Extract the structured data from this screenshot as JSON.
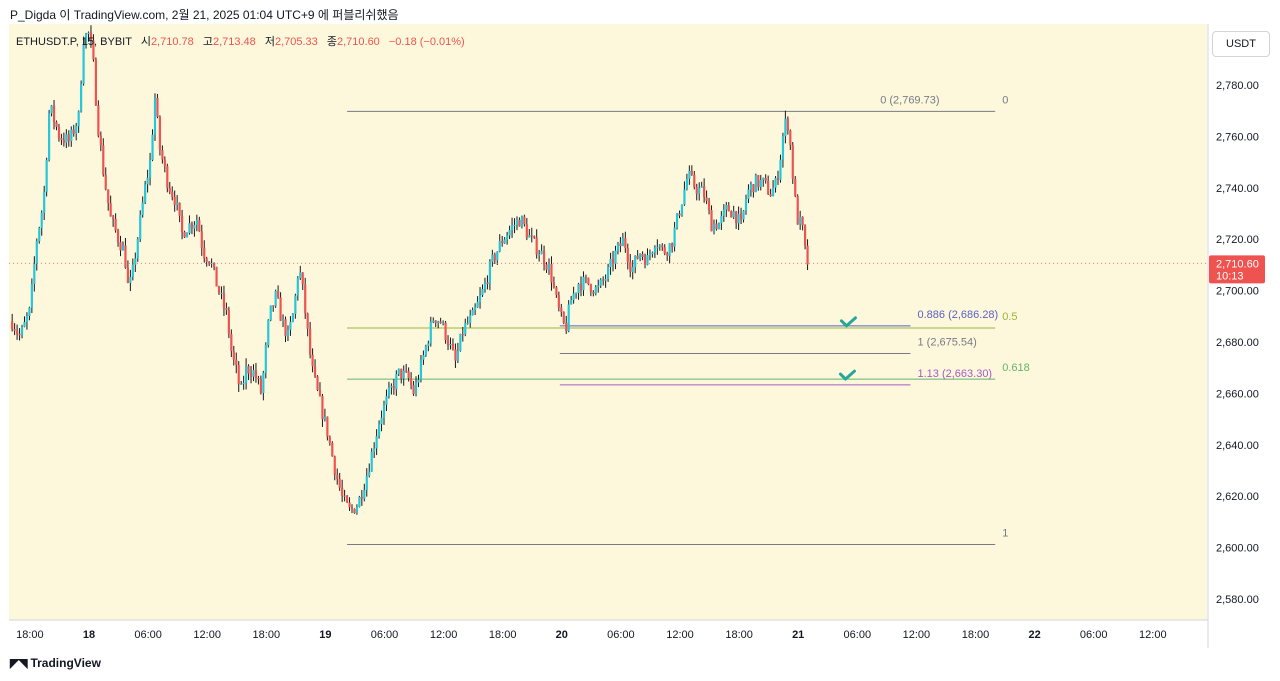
{
  "caption": "P_Digda 이 TradingView.com, 2월 21, 2025 01:04 UTC+9 에 퍼블리쉬했음",
  "legend": {
    "symbol": "ETHUSDT.P, 15, BYBIT",
    "open_label": "시",
    "open": "2,710.78",
    "high_label": "고",
    "high": "2,713.48",
    "low_label": "저",
    "low": "2,705.33",
    "close_label": "종",
    "close": "2,710.60",
    "change": "−0.18 (−0.01%)"
  },
  "currency_button": "USDT",
  "brand": "TradingView",
  "brand_icon": "tradingview-logo-icon",
  "colors": {
    "background": "#fdf8dc",
    "candle_up": "#26c6da",
    "candle_down": "#ef5350",
    "wick": "#131722",
    "price_tag": "#ef5350",
    "fib_gray": "#787b86",
    "fib_green_05": "#9bb23e",
    "fib_green_0618": "#63b36b",
    "ext_blue": "#5b5fc7",
    "ext_purple": "#a65bc4",
    "check": "#26a69a"
  },
  "chart_data": {
    "type": "candlestick",
    "symbol": "ETHUSDT.P",
    "interval": "15",
    "exchange": "BYBIT",
    "ylim": [
      2570,
      2800
    ],
    "y_ticks": [
      "2,780.00",
      "2,760.00",
      "2,740.00",
      "2,720.00",
      "2,700.00",
      "2,680.00",
      "2,660.00",
      "2,640.00",
      "2,620.00",
      "2,600.00",
      "2,580.00"
    ],
    "y_tick_values": [
      2780,
      2760,
      2740,
      2720,
      2700,
      2680,
      2660,
      2640,
      2620,
      2600,
      2580
    ],
    "x_ticks": [
      "18:00",
      "18",
      "06:00",
      "12:00",
      "18:00",
      "19",
      "06:00",
      "12:00",
      "18:00",
      "20",
      "06:00",
      "12:00",
      "18:00",
      "21",
      "06:00",
      "12:00",
      "18:00",
      "22",
      "06:00",
      "12:00"
    ],
    "x_tick_bold": [
      false,
      true,
      false,
      false,
      false,
      true,
      false,
      false,
      false,
      true,
      false,
      false,
      false,
      true,
      false,
      false,
      false,
      true,
      false,
      false
    ],
    "x_tick_hours": [
      -6,
      0,
      6,
      12,
      18,
      24,
      30,
      36,
      42,
      48,
      54,
      60,
      66,
      72,
      78,
      84,
      90,
      96,
      102,
      108
    ],
    "last_time_hours": 73.0,
    "candle_interval_hours": 0.25,
    "close_path": [
      [
        -7.8,
        2688
      ],
      [
        -7.0,
        2682
      ],
      [
        -6.0,
        2692
      ],
      [
        -5.3,
        2720
      ],
      [
        -4.6,
        2735
      ],
      [
        -4.0,
        2772
      ],
      [
        -3.0,
        2760
      ],
      [
        -2.0,
        2758
      ],
      [
        -1.0,
        2768
      ],
      [
        -0.6,
        2798
      ],
      [
        0.0,
        2800
      ],
      [
        0.4,
        2790
      ],
      [
        0.9,
        2765
      ],
      [
        1.5,
        2745
      ],
      [
        2.2,
        2728
      ],
      [
        3.0,
        2720
      ],
      [
        3.6,
        2715
      ],
      [
        4.0,
        2700
      ],
      [
        4.4,
        2706
      ],
      [
        5.0,
        2722
      ],
      [
        5.7,
        2740
      ],
      [
        6.2,
        2750
      ],
      [
        6.7,
        2775
      ],
      [
        7.2,
        2755
      ],
      [
        8.0,
        2742
      ],
      [
        8.8,
        2735
      ],
      [
        9.4,
        2722
      ],
      [
        10.0,
        2725
      ],
      [
        11.0,
        2728
      ],
      [
        11.6,
        2715
      ],
      [
        12.3,
        2712
      ],
      [
        13.0,
        2702
      ],
      [
        14.0,
        2690
      ],
      [
        14.5,
        2675
      ],
      [
        15.0,
        2668
      ],
      [
        15.4,
        2660
      ],
      [
        16.0,
        2670
      ],
      [
        16.8,
        2668
      ],
      [
        17.5,
        2660
      ],
      [
        18.3,
        2690
      ],
      [
        19.0,
        2698
      ],
      [
        19.6,
        2688
      ],
      [
        20.2,
        2682
      ],
      [
        20.8,
        2692
      ],
      [
        21.3,
        2710
      ],
      [
        21.7,
        2700
      ],
      [
        22.0,
        2690
      ],
      [
        22.6,
        2670
      ],
      [
        23.2,
        2660
      ],
      [
        24.2,
        2645
      ],
      [
        25.0,
        2630
      ],
      [
        25.8,
        2618
      ],
      [
        26.5,
        2614
      ],
      [
        27.3,
        2617
      ],
      [
        28.1,
        2627
      ],
      [
        28.8,
        2638
      ],
      [
        29.5,
        2650
      ],
      [
        30.5,
        2660
      ],
      [
        31.5,
        2668
      ],
      [
        32.4,
        2666
      ],
      [
        33.0,
        2660
      ],
      [
        34.0,
        2675
      ],
      [
        35.0,
        2690
      ],
      [
        35.7,
        2688
      ],
      [
        36.5,
        2680
      ],
      [
        37.2,
        2672
      ],
      [
        38.0,
        2685
      ],
      [
        39.0,
        2690
      ],
      [
        40.0,
        2700
      ],
      [
        41.0,
        2712
      ],
      [
        42.0,
        2720
      ],
      [
        43.0,
        2725
      ],
      [
        43.8,
        2728
      ],
      [
        44.8,
        2720
      ],
      [
        46.0,
        2714
      ],
      [
        46.8,
        2708
      ],
      [
        47.5,
        2695
      ],
      [
        48.0,
        2688
      ],
      [
        48.4,
        2685
      ],
      [
        48.9,
        2696
      ],
      [
        49.7,
        2703
      ],
      [
        50.6,
        2703
      ],
      [
        51.6,
        2700
      ],
      [
        52.6,
        2706
      ],
      [
        53.4,
        2714
      ],
      [
        54.3,
        2720
      ],
      [
        55.1,
        2708
      ],
      [
        55.9,
        2715
      ],
      [
        56.7,
        2712
      ],
      [
        57.5,
        2720
      ],
      [
        58.3,
        2715
      ],
      [
        59.1,
        2718
      ],
      [
        60.0,
        2732
      ],
      [
        60.8,
        2745
      ],
      [
        61.6,
        2740
      ],
      [
        62.4,
        2738
      ],
      [
        63.2,
        2726
      ],
      [
        64.0,
        2726
      ],
      [
        64.8,
        2732
      ],
      [
        65.6,
        2730
      ],
      [
        66.2,
        2725
      ],
      [
        66.8,
        2738
      ],
      [
        67.6,
        2742
      ],
      [
        68.4,
        2742
      ],
      [
        69.2,
        2738
      ],
      [
        69.8,
        2742
      ],
      [
        70.3,
        2755
      ],
      [
        70.6,
        2765
      ],
      [
        71.0,
        2765
      ],
      [
        71.3,
        2752
      ],
      [
        71.6,
        2738
      ],
      [
        71.9,
        2728
      ],
      [
        72.4,
        2725
      ],
      [
        72.8,
        2712
      ],
      [
        73.0,
        2710.6
      ]
    ],
    "last_price": "2,710.60",
    "countdown": "10:13",
    "last_price_value": 2710.6,
    "fibonacci_retracement": {
      "levels": [
        {
          "label": "0 (2,769.73)",
          "right_label": "0",
          "price": 2769.73,
          "color": "gray"
        },
        {
          "label": "",
          "right_label": "0.5",
          "price": 2685.45,
          "color": "green_05"
        },
        {
          "label": "",
          "right_label": "0.618",
          "price": 2665.56,
          "color": "green_0618"
        },
        {
          "label": "",
          "right_label": "1",
          "price": 2601.2,
          "color": "gray"
        }
      ],
      "start_hours": 26.2,
      "end_hours": 92.0
    },
    "trend_extension": {
      "levels": [
        {
          "label": "0.886 (2,686.28)",
          "price": 2686.28,
          "color": "ext_blue"
        },
        {
          "label": "1 (2,675.54)",
          "price": 2675.54,
          "color": "gray"
        },
        {
          "label": "1.13 (2,663.30)",
          "price": 2663.3,
          "color": "ext_purple"
        }
      ],
      "start_hours": 47.8,
      "end_hours": 83.4
    },
    "checkmarks": [
      {
        "time_hours": 77.1,
        "price": 2686.28
      },
      {
        "time_hours": 77.0,
        "price": 2665.56
      }
    ]
  }
}
